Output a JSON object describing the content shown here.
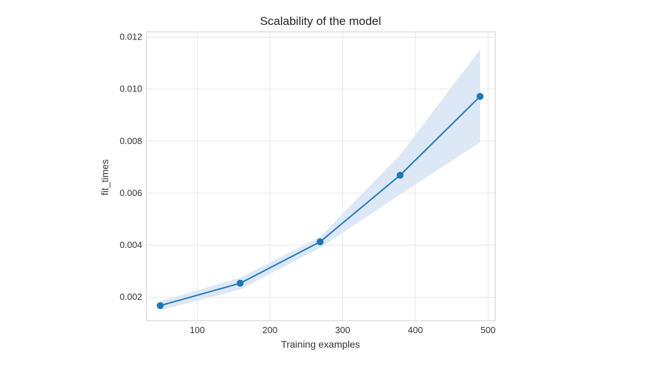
{
  "chart_data": {
    "type": "line",
    "title": "Scalability of the model",
    "xlabel": "Training examples",
    "ylabel": "fit_times",
    "xlim": [
      30,
      510
    ],
    "ylim": [
      0.0011,
      0.0122
    ],
    "xticks": [
      100,
      200,
      300,
      400,
      500
    ],
    "yticks": [
      0.002,
      0.004,
      0.006,
      0.008,
      0.01,
      0.012
    ],
    "ytick_labels": [
      "0.002",
      "0.004",
      "0.006",
      "0.008",
      "0.010",
      "0.012"
    ],
    "grid": true,
    "legend": "none",
    "series": [
      {
        "x": [
          49,
          159,
          269,
          379,
          489
        ],
        "y": [
          0.00168,
          0.00254,
          0.00413,
          0.00669,
          0.00972
        ],
        "upper": [
          0.00185,
          0.00275,
          0.00432,
          0.00747,
          0.01152
        ],
        "lower": [
          0.0015,
          0.0023,
          0.0039,
          0.00595,
          0.00795
        ],
        "color": "#1f77b4",
        "band_color": "#dce8f5"
      }
    ]
  }
}
